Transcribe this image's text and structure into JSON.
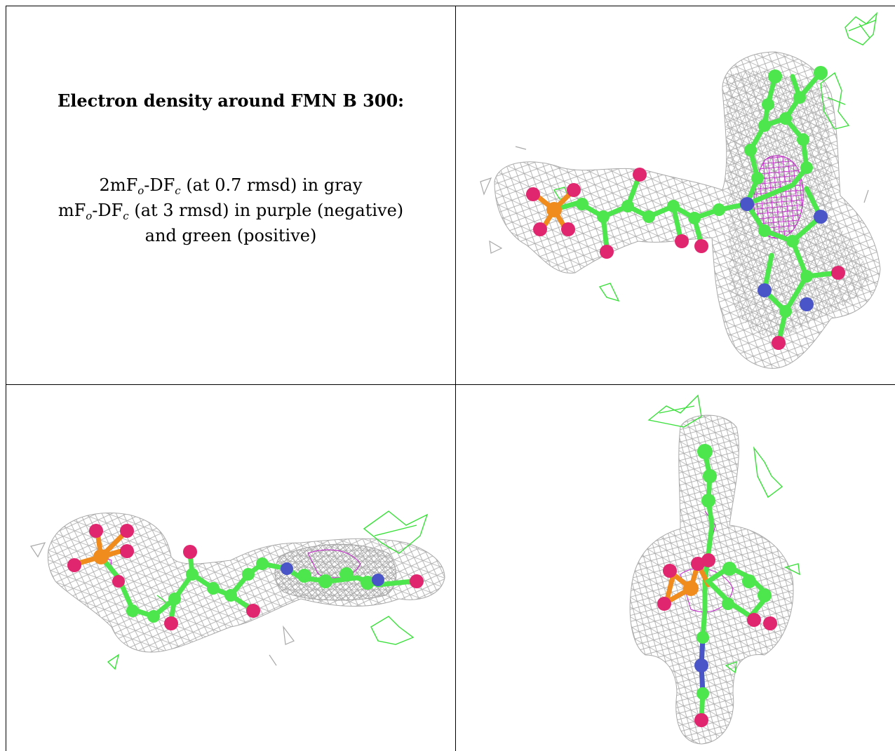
{
  "caption": {
    "title": "Electron density around FMN B 300:",
    "line1": {
      "pre": "2mF",
      "sub1": "o",
      "mid": "-DF",
      "sub2": "c",
      "post": " (at 0.7 rmsd) in gray"
    },
    "line2": {
      "pre": "mF",
      "sub1": "o",
      "mid": "-DF",
      "sub2": "c",
      "post": " (at 3 rmsd) in purple (negative)"
    },
    "line3": "and green (positive)"
  },
  "colors": {
    "carbon": "#4de64d",
    "oxygen": "#e0266e",
    "nitrogen": "#4a55c8",
    "phosphorus": "#f08c1e",
    "mesh_2fofc": "#a9a9a9",
    "mesh_negative": "#c020c8",
    "mesh_positive": "#3ae03a"
  },
  "panels": [
    {
      "name": "view-1",
      "description_icon": "molecule-icon"
    },
    {
      "name": "view-2",
      "description_icon": "molecule-icon"
    },
    {
      "name": "view-3",
      "description_icon": "molecule-icon"
    }
  ]
}
